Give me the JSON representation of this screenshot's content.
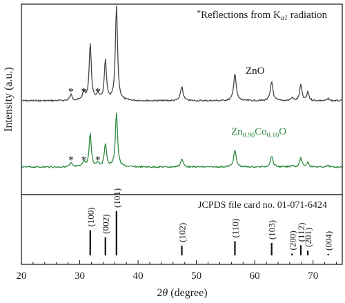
{
  "chart_data": [
    {
      "type": "line",
      "panel": "top",
      "ylabel": "Intensity (a.u.)",
      "annotation_note_star": "*",
      "annotation_note": "Reflections from K",
      "annotation_note_sub": "α1",
      "annotation_note_tail": " radiation",
      "star_marker": "*",
      "star_positions": [
        28.5,
        30.7,
        33.1
      ],
      "series": [
        {
          "name": "ZnO",
          "color": "#444444",
          "peaks": [
            {
              "x": 28.5,
              "h": 0.06,
              "w": 0.25
            },
            {
              "x": 30.7,
              "h": 0.09,
              "w": 0.25
            },
            {
              "x": 31.8,
              "h": 0.6,
              "w": 0.22
            },
            {
              "x": 33.1,
              "h": 0.07,
              "w": 0.25
            },
            {
              "x": 34.4,
              "h": 0.42,
              "w": 0.22
            },
            {
              "x": 36.3,
              "h": 1.0,
              "w": 0.22
            },
            {
              "x": 47.5,
              "h": 0.15,
              "w": 0.25
            },
            {
              "x": 56.6,
              "h": 0.29,
              "w": 0.25
            },
            {
              "x": 62.9,
              "h": 0.2,
              "w": 0.25
            },
            {
              "x": 66.4,
              "h": 0.03,
              "w": 0.25
            },
            {
              "x": 67.9,
              "h": 0.17,
              "w": 0.22
            },
            {
              "x": 69.1,
              "h": 0.09,
              "w": 0.22
            },
            {
              "x": 72.6,
              "h": 0.02,
              "w": 0.25
            }
          ],
          "baseline": 0.0
        },
        {
          "name_main": "Zn",
          "name_sub1": "0.90",
          "name_mid": "Co",
          "name_sub2": "0.10",
          "name_tail": "O",
          "color": "#2e8b3e",
          "peaks": [
            {
              "x": 28.5,
              "h": 0.06,
              "w": 0.25
            },
            {
              "x": 30.7,
              "h": 0.09,
              "w": 0.25
            },
            {
              "x": 31.8,
              "h": 0.53,
              "w": 0.22
            },
            {
              "x": 33.1,
              "h": 0.07,
              "w": 0.25
            },
            {
              "x": 34.4,
              "h": 0.38,
              "w": 0.22
            },
            {
              "x": 36.3,
              "h": 0.88,
              "w": 0.22
            },
            {
              "x": 47.5,
              "h": 0.13,
              "w": 0.25
            },
            {
              "x": 56.6,
              "h": 0.27,
              "w": 0.25
            },
            {
              "x": 62.9,
              "h": 0.18,
              "w": 0.25
            },
            {
              "x": 66.4,
              "h": 0.03,
              "w": 0.25
            },
            {
              "x": 67.9,
              "h": 0.15,
              "w": 0.22
            },
            {
              "x": 69.1,
              "h": 0.08,
              "w": 0.22
            },
            {
              "x": 72.6,
              "h": 0.02,
              "w": 0.25
            }
          ],
          "baseline": 0.0
        }
      ]
    },
    {
      "type": "bar",
      "panel": "bottom",
      "title": "JCPDS file card no. 01-071-6424",
      "xlabel_theta": "θ",
      "xlabel_two": "2",
      "xlabel_rest": " (degree)",
      "xlim": [
        20,
        75
      ],
      "xticks": [
        20,
        30,
        40,
        50,
        60,
        70
      ],
      "reflections": [
        {
          "x": 31.8,
          "label": "(100)",
          "h": 0.57
        },
        {
          "x": 34.4,
          "label": "(002)",
          "h": 0.41
        },
        {
          "x": 36.3,
          "label": "(101)",
          "h": 1.0
        },
        {
          "x": 47.5,
          "label": "(102)",
          "h": 0.22
        },
        {
          "x": 56.6,
          "label": "(110)",
          "h": 0.32
        },
        {
          "x": 62.9,
          "label": "(103)",
          "h": 0.28
        },
        {
          "x": 66.4,
          "label": "(200)",
          "h": 0.04
        },
        {
          "x": 67.9,
          "label": "(112)",
          "h": 0.23
        },
        {
          "x": 69.1,
          "label": "(201)",
          "h": 0.11
        },
        {
          "x": 72.6,
          "label": "(004)",
          "h": 0.02
        }
      ]
    }
  ]
}
